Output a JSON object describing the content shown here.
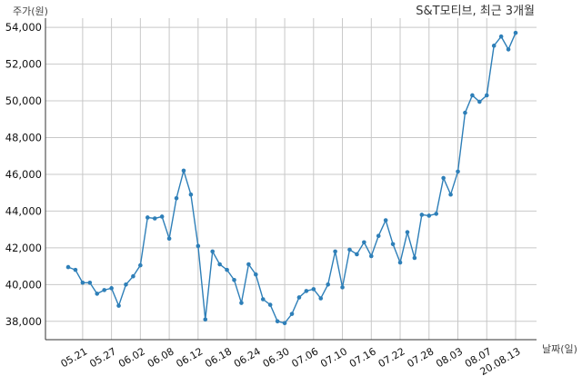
{
  "chart_data": {
    "type": "line",
    "title": "S&T모티브, 최근 3개월",
    "ylabel": "주가(원)",
    "xlabel": "날짜(일)",
    "ylim": [
      37000,
      54500
    ],
    "yticks": [
      38000,
      40000,
      42000,
      44000,
      46000,
      48000,
      50000,
      52000,
      54000
    ],
    "ytick_labels": [
      "38,000",
      "40,000",
      "42,000",
      "44,000",
      "46,000",
      "48,000",
      "50,000",
      "52,000",
      "54,000"
    ],
    "xtick_labels": [
      "05.21",
      "05.27",
      "06.02",
      "06.08",
      "06.12",
      "06.18",
      "06.24",
      "06.30",
      "07.06",
      "07.10",
      "07.16",
      "07.22",
      "07.28",
      "08.03",
      "08.07",
      "20.08.13"
    ],
    "xtick_index": [
      2,
      6,
      10,
      14,
      18,
      22,
      26,
      30,
      34,
      38,
      42,
      46,
      50,
      54,
      58,
      62
    ],
    "grid": true,
    "color": "#2e7fb8",
    "series": [
      {
        "values": [
          40950,
          40800,
          40100,
          40100,
          39500,
          39700,
          39800,
          38850,
          40000,
          40450,
          41050,
          43650,
          43600,
          43700,
          42500,
          44700,
          46200,
          44900,
          42100,
          38100,
          41800,
          41100,
          40800,
          40250,
          39000,
          41100,
          40550,
          39200,
          38900,
          38000,
          37900,
          38400,
          39300,
          39650,
          39750,
          39250,
          40000,
          41800,
          39850,
          41900,
          41650,
          42300,
          41550,
          42650,
          43500,
          42200,
          41200,
          42850,
          41450,
          43800,
          43750,
          43850,
          45800,
          44900,
          46150,
          49350,
          50300,
          49950,
          50300,
          53000,
          53500,
          52800,
          53700
        ]
      }
    ]
  }
}
